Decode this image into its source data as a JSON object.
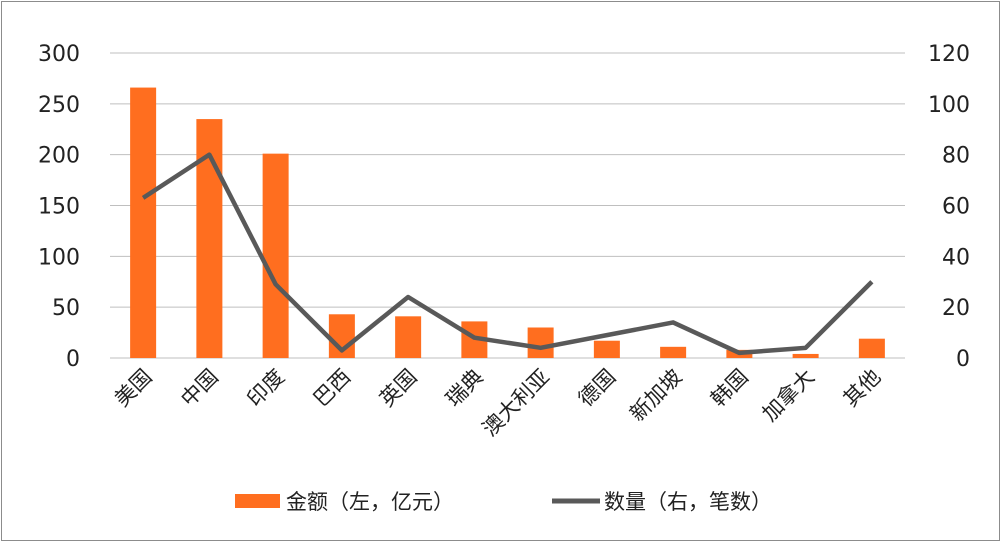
{
  "chart_data": {
    "type": "bar",
    "categories": [
      "美国",
      "中国",
      "印度",
      "巴西",
      "英国",
      "瑞典",
      "澳大利亚",
      "德国",
      "新加坡",
      "韩国",
      "加拿大",
      "其他"
    ],
    "series": [
      {
        "name": "金额（左，亿元）",
        "type": "bar",
        "axis": "left",
        "color": "#ff6e1f",
        "values": [
          266,
          235,
          201,
          43,
          41,
          36,
          30,
          17,
          11,
          8,
          4,
          19
        ]
      },
      {
        "name": "数量（右，笔数）",
        "type": "line",
        "axis": "right",
        "color": "#595959",
        "values": [
          63,
          80,
          29,
          3,
          24,
          8,
          4,
          9,
          14,
          2,
          4,
          30
        ]
      }
    ],
    "y_left": {
      "min": 0,
      "max": 300,
      "ticks": [
        "0",
        "50",
        "100",
        "150",
        "200",
        "250",
        "300"
      ]
    },
    "y_right": {
      "min": 0,
      "max": 120,
      "ticks": [
        "0",
        "20",
        "40",
        "60",
        "80",
        "100",
        "120"
      ]
    },
    "grid": true,
    "legend_position": "bottom"
  }
}
